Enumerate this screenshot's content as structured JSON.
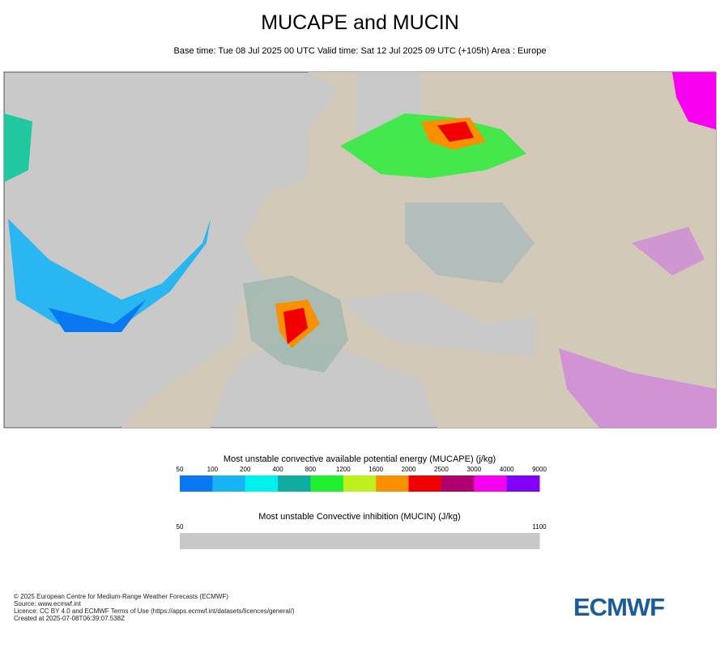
{
  "header": {
    "title": "MUCAPE and MUCIN",
    "subtitle": "Base time: Tue 08 Jul 2025 00 UTC Valid time: Sat 12 Jul 2025 09 UTC (+105h) Area : Europe"
  },
  "legends": [
    {
      "title": "Most unstable convective available potential energy (MUCAPE) (j/kg)",
      "ticks": [
        50,
        100,
        200,
        400,
        800,
        1200,
        1600,
        2000,
        2500,
        3000,
        4000,
        9000
      ],
      "colors": [
        "#0a78f0",
        "#18b4f4",
        "#00f0f0",
        "#10aca0",
        "#20f030",
        "#bef01e",
        "#f89000",
        "#f00000",
        "#b00070",
        "#f800f0",
        "#8000f8"
      ]
    },
    {
      "title": "Most unstable Convective inhibition (MUCIN) (J/kg)",
      "ticks": [
        50,
        1100
      ],
      "colors": [
        "#c8c8c8"
      ]
    }
  ],
  "footer": {
    "lines": [
      "© 2025 European Centre for Medium-Range Weather Forecasts (ECMWF)",
      "Source: www.ecmwf.int",
      "Licence: CC BY 4.0 and ECMWF Terms of Use (https://apps.ecmwf.int/datasets/licences/general/)",
      "Created at 2025-07-08T06:39:07.538Z"
    ]
  },
  "logo": "ECMWF"
}
